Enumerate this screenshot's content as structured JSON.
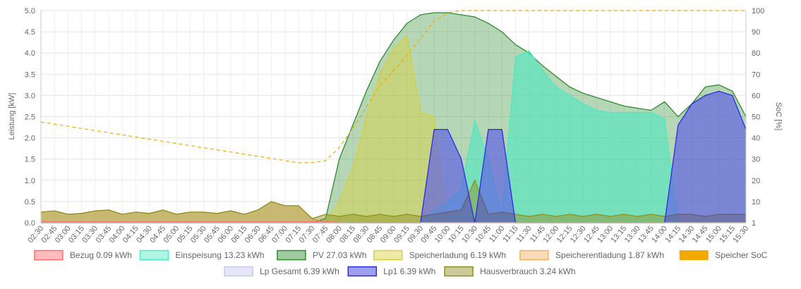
{
  "chart_data": {
    "type": "area",
    "x": [
      "02:30",
      "02:45",
      "03:00",
      "03:15",
      "03:30",
      "03:45",
      "04:00",
      "04:15",
      "04:30",
      "04:45",
      "05:00",
      "05:15",
      "05:30",
      "05:45",
      "06:00",
      "06:15",
      "06:30",
      "06:45",
      "07:00",
      "07:15",
      "07:30",
      "07:45",
      "08:00",
      "08:15",
      "08:30",
      "08:45",
      "09:00",
      "09:15",
      "09:30",
      "09:45",
      "10:00",
      "10:15",
      "10:30",
      "10:45",
      "11:00",
      "11:15",
      "11:30",
      "11:45",
      "12:00",
      "12:15",
      "12:30",
      "12:45",
      "13:00",
      "13:15",
      "13:30",
      "13:45",
      "14:00",
      "14:15",
      "14:30",
      "14:45",
      "15:00",
      "15:15",
      "15:30"
    ],
    "xlabel": "",
    "ylabel": "Leistung [kW]",
    "ylim": [
      0,
      5
    ],
    "y_ticks": [
      "0.0",
      "0.5",
      "1.0",
      "1.5",
      "2.0",
      "2.5",
      "3.0",
      "3.5",
      "4.0",
      "4.5",
      "5.0"
    ],
    "y2label": "SoC [%]",
    "y2lim": [
      1,
      100
    ],
    "y2_ticks": [
      "1",
      "10",
      "20",
      "30",
      "40",
      "50",
      "60",
      "70",
      "80",
      "90",
      "100"
    ],
    "grid": true,
    "legend_position": "bottom",
    "series": [
      {
        "name": "Bezug 0.09 kWh",
        "color": "#ff6b6b",
        "values": [
          0.02,
          0.02,
          0.02,
          0.02,
          0.02,
          0.02,
          0.02,
          0.02,
          0.02,
          0.02,
          0.02,
          0.02,
          0.02,
          0.02,
          0.02,
          0.02,
          0.02,
          0.02,
          0.02,
          0.02,
          0.02,
          0.02,
          0.01,
          0,
          0,
          0,
          0,
          0,
          0,
          0,
          0,
          0,
          0,
          0,
          0,
          0,
          0,
          0,
          0,
          0,
          0,
          0,
          0,
          0,
          0,
          0,
          0,
          0,
          0,
          0,
          0,
          0,
          0
        ]
      },
      {
        "name": "Einspeisung 13.23 kWh",
        "color": "#4de8c2",
        "values": [
          0,
          0,
          0,
          0,
          0,
          0,
          0,
          0,
          0,
          0,
          0,
          0,
          0,
          0,
          0,
          0,
          0,
          0,
          0,
          0,
          0,
          0,
          0,
          0,
          0,
          0,
          0,
          0,
          0,
          0.3,
          0.5,
          0.8,
          2.4,
          1.5,
          0.2,
          3.9,
          4.05,
          3.6,
          3.2,
          3.0,
          2.8,
          2.65,
          2.6,
          2.6,
          2.6,
          2.6,
          2.45,
          0,
          0,
          0,
          0,
          0,
          0
        ]
      },
      {
        "name": "PV 27.03 kWh",
        "color": "#2e8b2e",
        "values": [
          0,
          0,
          0,
          0,
          0,
          0,
          0,
          0,
          0,
          0,
          0,
          0,
          0,
          0,
          0,
          0,
          0,
          0,
          0,
          0,
          0,
          0.1,
          1.5,
          2.3,
          3.1,
          3.8,
          4.3,
          4.7,
          4.9,
          4.95,
          4.95,
          4.9,
          4.85,
          4.7,
          4.5,
          4.2,
          4.0,
          3.7,
          3.45,
          3.2,
          3.05,
          2.95,
          2.85,
          2.75,
          2.7,
          2.65,
          2.85,
          2.5,
          2.8,
          3.2,
          3.25,
          3.1,
          2.5
        ]
      },
      {
        "name": "Speicherladung 6.19 kWh",
        "color": "#d9cf3c",
        "values": [
          0,
          0,
          0,
          0,
          0,
          0,
          0,
          0,
          0,
          0,
          0,
          0,
          0,
          0,
          0,
          0,
          0,
          0,
          0,
          0,
          0,
          0,
          0.5,
          1.3,
          2.5,
          3.5,
          4.1,
          4.4,
          2.6,
          2.5,
          0,
          0,
          0,
          0,
          0,
          0,
          0,
          0,
          0,
          0,
          0,
          0,
          0,
          0,
          0,
          0,
          0,
          0,
          0,
          0,
          0,
          0,
          0
        ]
      },
      {
        "name": "Speicherentladung 1.87 kWh",
        "color": "#f0b060",
        "values": [
          0.25,
          0.28,
          0.2,
          0.22,
          0.28,
          0.3,
          0.2,
          0.25,
          0.22,
          0.3,
          0.2,
          0.25,
          0.25,
          0.22,
          0.28,
          0.2,
          0.3,
          0.5,
          0.4,
          0.4,
          0.1,
          0,
          0,
          0,
          0,
          0,
          0,
          0,
          0,
          0,
          0,
          0,
          0,
          0,
          0,
          0,
          0,
          0,
          0,
          0,
          0,
          0,
          0,
          0,
          0,
          0,
          0,
          0,
          0,
          0,
          0,
          0,
          0
        ]
      },
      {
        "name": "Speicher SoC",
        "color": "#f2a900",
        "values": [
          48,
          47,
          46,
          45,
          44,
          43,
          42,
          41,
          40,
          39,
          38,
          37,
          36,
          35,
          34,
          33,
          32,
          31,
          30,
          29,
          29,
          30,
          36,
          45,
          55,
          65,
          72,
          79,
          87,
          95,
          99,
          100,
          100,
          100,
          100,
          100,
          100,
          100,
          100,
          100,
          100,
          100,
          100,
          100,
          100,
          100,
          100,
          100,
          100,
          100,
          100,
          100,
          100
        ]
      },
      {
        "name": "Lp Gesamt 6.39 kWh",
        "color": "#c8c8f0",
        "values": [
          0,
          0,
          0,
          0,
          0,
          0,
          0,
          0,
          0,
          0,
          0,
          0,
          0,
          0,
          0,
          0,
          0,
          0,
          0,
          0,
          0,
          0,
          0,
          0,
          0,
          0,
          0,
          0,
          0,
          2.2,
          2.2,
          1.5,
          0,
          2.2,
          2.2,
          0,
          0,
          0,
          0,
          0,
          0,
          0,
          0,
          0,
          0,
          0,
          0,
          2.3,
          2.8,
          3.0,
          3.1,
          3.0,
          2.2
        ]
      },
      {
        "name": "Lp1 6.39 kWh",
        "color": "#2b2be0",
        "values": [
          0,
          0,
          0,
          0,
          0,
          0,
          0,
          0,
          0,
          0,
          0,
          0,
          0,
          0,
          0,
          0,
          0,
          0,
          0,
          0,
          0,
          0,
          0,
          0,
          0,
          0,
          0,
          0,
          0,
          2.2,
          2.2,
          1.5,
          0,
          2.2,
          2.2,
          0,
          0,
          0,
          0,
          0,
          0,
          0,
          0,
          0,
          0,
          0,
          0,
          2.3,
          2.8,
          3.0,
          3.1,
          3.0,
          2.2
        ]
      },
      {
        "name": "Hausverbrauch 3.24 kWh",
        "color": "#8f8f1e",
        "values": [
          0.25,
          0.28,
          0.2,
          0.22,
          0.28,
          0.3,
          0.2,
          0.25,
          0.22,
          0.3,
          0.2,
          0.25,
          0.25,
          0.22,
          0.28,
          0.2,
          0.3,
          0.5,
          0.4,
          0.4,
          0.1,
          0.2,
          0.15,
          0.2,
          0.15,
          0.2,
          0.15,
          0.2,
          0.15,
          0.2,
          0.25,
          0.3,
          1.0,
          0.2,
          0.25,
          0.2,
          0.15,
          0.2,
          0.15,
          0.2,
          0.15,
          0.2,
          0.15,
          0.2,
          0.15,
          0.2,
          0.15,
          0.2,
          0.2,
          0.15,
          0.2,
          0.2,
          0.2
        ]
      }
    ]
  }
}
